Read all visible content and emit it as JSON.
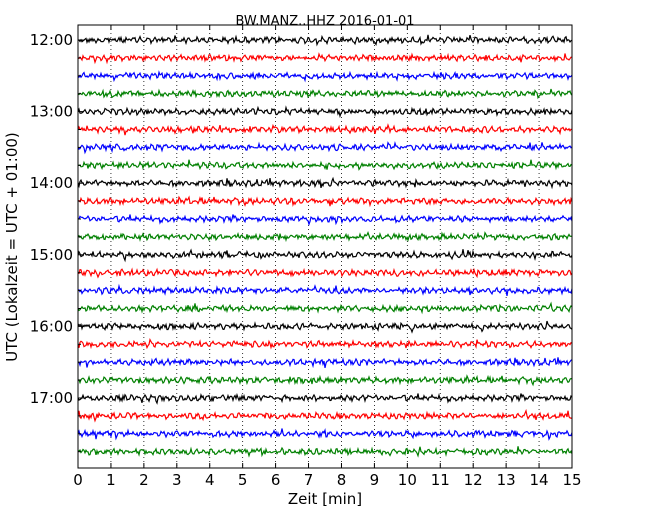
{
  "chart_data": {
    "type": "line",
    "title": "BW.MANZ..HHZ 2016-01-01",
    "xlabel": "Zeit  [min]",
    "ylabel": "UTC (Lokalzeit = UTC + 01:00)",
    "xlim": [
      0,
      15
    ],
    "x_ticks": [
      "0",
      "1",
      "2",
      "3",
      "4",
      "5",
      "6",
      "7",
      "8",
      "9",
      "10",
      "11",
      "12",
      "13",
      "14",
      "15"
    ],
    "y_tick_labels": [
      "12:00",
      "13:00",
      "14:00",
      "15:00",
      "16:00",
      "17:00"
    ],
    "trace_start_times": [
      "12:00",
      "12:15",
      "12:30",
      "12:45",
      "13:00",
      "13:15",
      "13:30",
      "13:45",
      "14:00",
      "14:15",
      "14:30",
      "14:45",
      "15:00",
      "15:15",
      "15:30",
      "15:45",
      "16:00",
      "16:15",
      "16:30",
      "16:45",
      "17:00",
      "17:15",
      "17:30",
      "17:45"
    ],
    "trace_colors": [
      "#000000",
      "#ff0000",
      "#0000ff",
      "#008000"
    ],
    "grid": "x, dotted",
    "series_description": "24 seismic traces of 15 minutes each, continuous seismogram"
  }
}
